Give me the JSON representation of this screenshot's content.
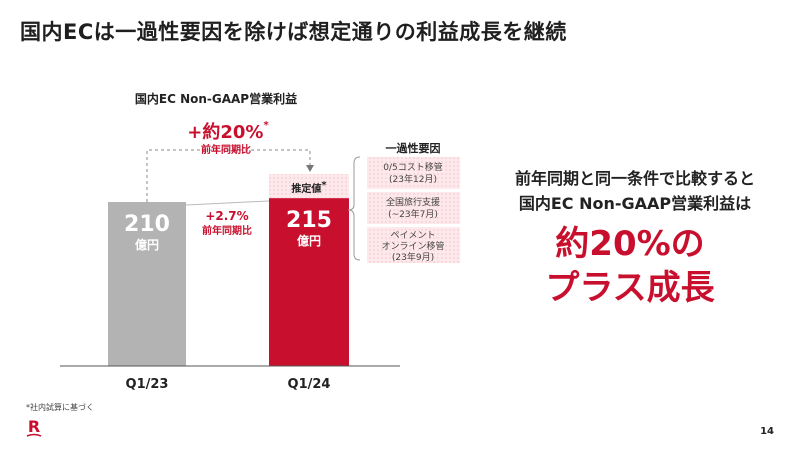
{
  "slide_title": "国内ECは一過性要因を除けば想定通りの利益成長を継続",
  "chart_data": {
    "type": "bar",
    "title": "国内EC Non-GAAP営業利益",
    "categories": [
      "Q1/23",
      "Q1/24"
    ],
    "values": [
      210,
      215
    ],
    "unit": "億円",
    "estimated_addon_label": "推定値",
    "estimated_addon_mark": "*",
    "estimated_total_growth": "+約20%",
    "estimated_total_growth_mark": "*",
    "estimated_total_growth_sub": "前年同期比",
    "yoy_growth": "+2.7%",
    "yoy_growth_sub": "前年同期比",
    "colors": {
      "q1_23": "#b3b3b3",
      "q1_24": "#c8102e",
      "estimate": "#fbe1e4",
      "accent": "#c8102e"
    }
  },
  "one_time_factors": {
    "title": "一過性要因",
    "items": [
      {
        "line1": "0/5コスト移管",
        "line2": "(23年12月)"
      },
      {
        "line1": "全国旅行支援",
        "line2": "(~23年7月)"
      },
      {
        "line1": "ペイメント",
        "line2": "オンライン移管",
        "line3": "(23年9月)"
      }
    ]
  },
  "message": {
    "line1": "前年同期と同一条件で比較すると",
    "line2": "国内EC Non-GAAP営業利益は",
    "line3": "約20%の",
    "line4": "プラス成長"
  },
  "footnote": "*社内試算に基づく",
  "page_number": "14",
  "logo_letter": "R"
}
